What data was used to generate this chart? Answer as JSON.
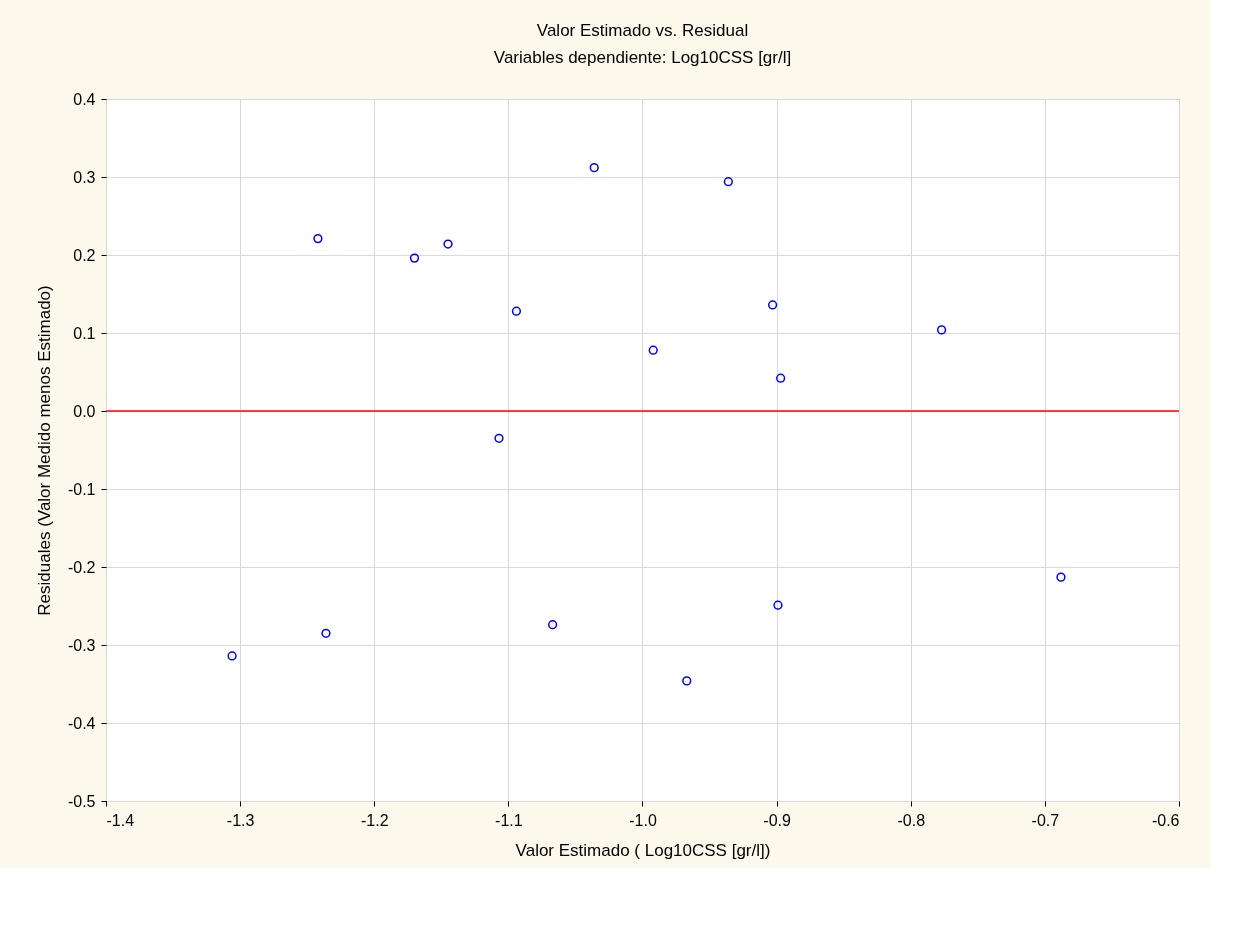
{
  "chart_data": {
    "type": "scatter",
    "title": "Valor Estimado vs. Residual",
    "subtitle": "Variables dependiente: Log10CSS [gr/l]",
    "xlabel": "Valor Estimado ( Log10CSS [gr/l])",
    "ylabel": "Residuales (Valor Medido menos Estimado)",
    "x": [
      -1.306,
      -1.242,
      -1.236,
      -1.17,
      -1.145,
      -1.107,
      -1.094,
      -1.067,
      -1.036,
      -0.992,
      -0.967,
      -0.936,
      -0.903,
      -0.899,
      -0.897,
      -0.777,
      -0.688
    ],
    "series": [
      {
        "color": "#0000ff",
        "values": [
          -0.314,
          0.221,
          -0.285,
          0.196,
          0.214,
          -0.035,
          0.128,
          -0.274,
          0.312,
          0.078,
          -0.346,
          0.294,
          0.136,
          -0.249,
          0.042,
          0.104,
          -0.213
        ]
      }
    ],
    "xlim": [
      -1.4,
      -0.6
    ],
    "xticks": [
      -1.4,
      -1.3,
      -1.2,
      -1.1,
      {
        "value": -1.0,
        "label": "-1.0"
      },
      -0.9,
      -0.8,
      -0.7,
      -0.6
    ],
    "ylim": [
      -0.5,
      0.4
    ],
    "yticks": [
      -0.5,
      -0.4,
      -0.3,
      -0.2,
      -0.1,
      {
        "value": 0.0,
        "label": "0.0"
      },
      0.1,
      0.2,
      0.3,
      0.4
    ],
    "ref_lines": [
      {
        "axis": "y",
        "value": 0,
        "color": "#ff0000"
      }
    ],
    "grid": true,
    "marker": "circle"
  }
}
